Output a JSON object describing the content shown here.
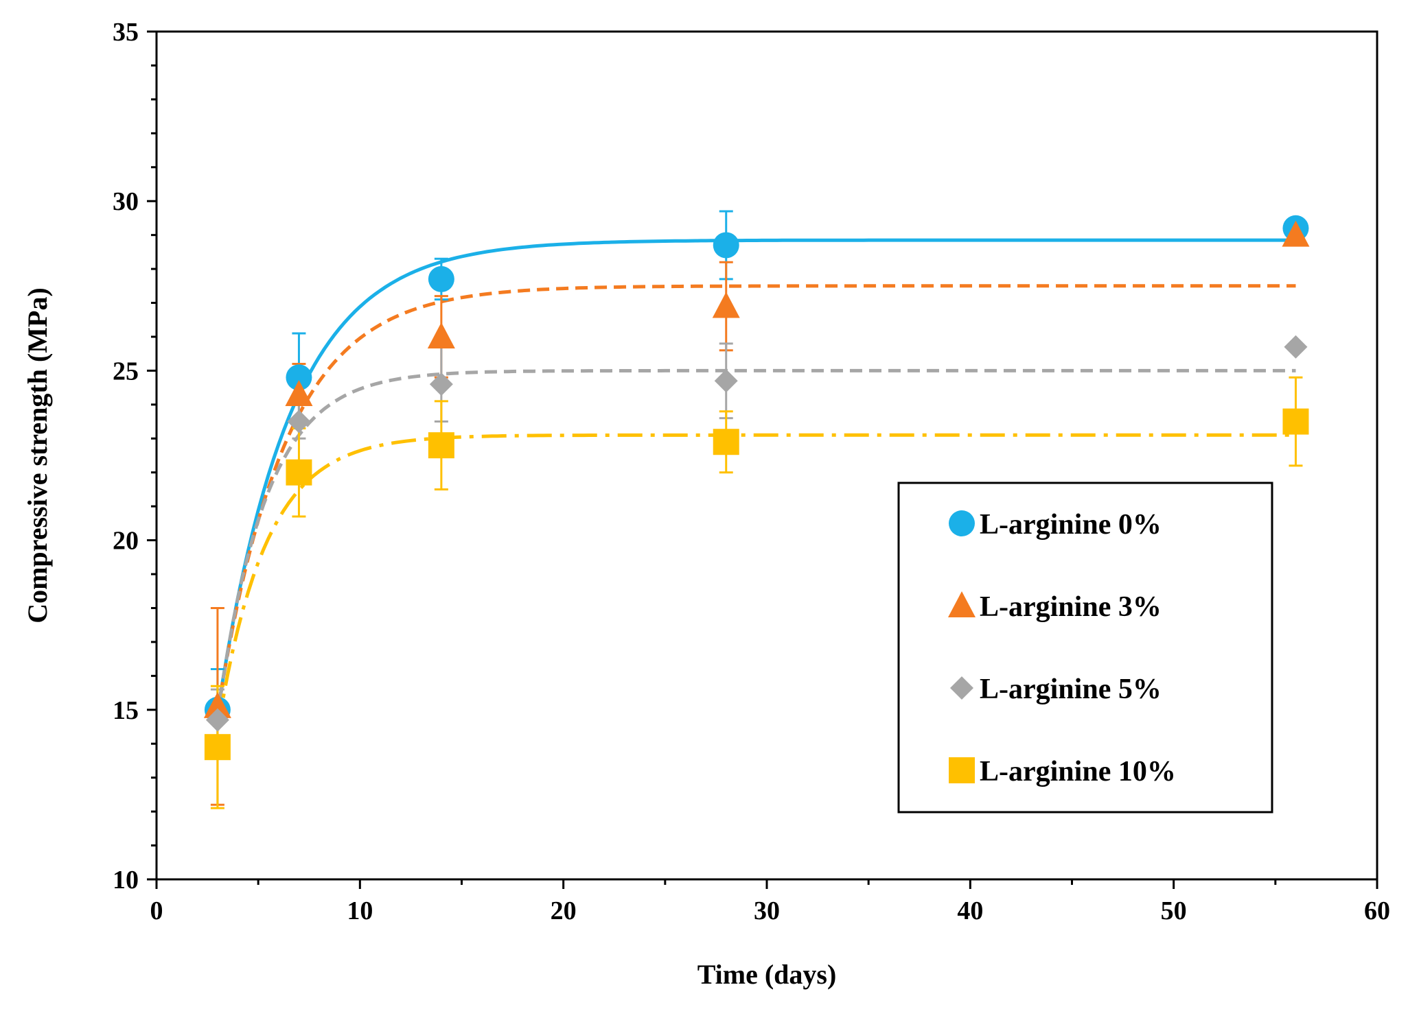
{
  "chart_data": {
    "type": "scatter",
    "title": "",
    "xlabel": "Time (days)",
    "ylabel": "Compressive strength (MPa)",
    "xlim": [
      0,
      60
    ],
    "ylim": [
      10,
      35
    ],
    "xticks": [
      0,
      10,
      20,
      30,
      40,
      50,
      60
    ],
    "yticks": [
      10,
      15,
      20,
      25,
      30,
      35
    ],
    "legend_position": "lower-right",
    "series": [
      {
        "name": "L-arginine 0%",
        "marker": "circle",
        "color": "#1BB0E8",
        "line_style": "solid",
        "x": [
          3,
          7,
          14,
          28,
          56
        ],
        "y": [
          15.0,
          24.8,
          27.7,
          28.7,
          29.2
        ],
        "error": [
          1.2,
          1.3,
          0.6,
          1.0,
          0.0
        ],
        "fit": {
          "model": "exponential",
          "plateau": 28.85,
          "k": 0.28,
          "t0": 3,
          "y0": 14.9
        }
      },
      {
        "name": "L-arginine 3%",
        "marker": "triangle",
        "color": "#F47B20",
        "line_style": "dashed",
        "x": [
          3,
          7,
          14,
          28,
          56
        ],
        "y": [
          15.1,
          24.3,
          26.0,
          26.9,
          29.0
        ],
        "error": [
          2.9,
          0.9,
          1.2,
          1.3,
          0.0
        ],
        "fit": {
          "model": "exponential",
          "plateau": 27.5,
          "k": 0.3,
          "t0": 3,
          "y0": 14.9
        }
      },
      {
        "name": "L-arginine 5%",
        "marker": "diamond",
        "color": "#A6A6A6",
        "line_style": "dashed",
        "x": [
          3,
          7,
          14,
          28,
          56
        ],
        "y": [
          14.7,
          23.5,
          24.6,
          24.7,
          25.7
        ],
        "error": [
          0.9,
          0.5,
          1.1,
          1.1,
          0.0
        ],
        "fit": {
          "model": "exponential",
          "plateau": 25.0,
          "k": 0.42,
          "t0": 3,
          "y0": 14.8
        }
      },
      {
        "name": "L-arginine 10%",
        "marker": "square",
        "color": "#FFC000",
        "line_style": "dash-dot",
        "x": [
          3,
          7,
          14,
          28,
          56
        ],
        "y": [
          13.9,
          22.0,
          22.8,
          22.9,
          23.5
        ],
        "error": [
          1.8,
          1.3,
          1.3,
          0.9,
          1.3
        ],
        "fit": {
          "model": "exponential",
          "plateau": 23.1,
          "k": 0.42,
          "t0": 3,
          "y0": 14.4
        }
      }
    ]
  }
}
